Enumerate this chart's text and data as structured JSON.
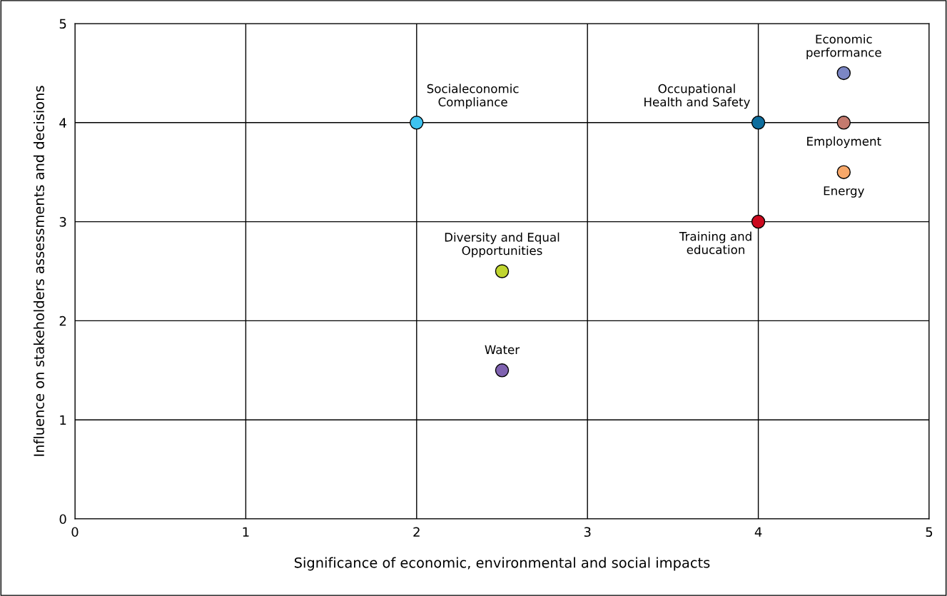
{
  "chart_data": {
    "type": "scatter",
    "xlabel": "Significance of economic, environmental and social impacts",
    "ylabel": "Influence on stakeholders assessments and decisions",
    "xlim": [
      0,
      5
    ],
    "ylim": [
      0,
      5
    ],
    "xticks": [
      0,
      1,
      2,
      3,
      4,
      5
    ],
    "yticks": [
      0,
      1,
      2,
      3,
      4,
      5
    ],
    "grid": true,
    "marker": "circle",
    "legend": false,
    "series": [
      {
        "name": "Economic\nperformance",
        "color": "#7b86c4",
        "x": [
          4.5
        ],
        "values": [
          4.5
        ]
      },
      {
        "name": "Employment",
        "color": "#c47a6e",
        "x": [
          4.5
        ],
        "values": [
          4.0
        ]
      },
      {
        "name": "Energy",
        "color": "#f7a86a",
        "x": [
          4.5
        ],
        "values": [
          3.5
        ]
      },
      {
        "name": "Occupational\nHealth and Safety",
        "color": "#0e6e9e",
        "x": [
          4
        ],
        "values": [
          4
        ]
      },
      {
        "name": "Training and\neducation",
        "color": "#cc0a1f",
        "x": [
          4
        ],
        "values": [
          3
        ]
      },
      {
        "name": "Socialeconomic\nCompliance",
        "color": "#3ec3f0",
        "x": [
          2
        ],
        "values": [
          4
        ]
      },
      {
        "name": "Diversity and Equal\nOpportunities",
        "color": "#c0d530",
        "x": [
          2.5
        ],
        "values": [
          2.5
        ]
      },
      {
        "name": "Water",
        "color": "#7f62b0",
        "x": [
          2.5
        ],
        "values": [
          1.5
        ]
      }
    ]
  }
}
